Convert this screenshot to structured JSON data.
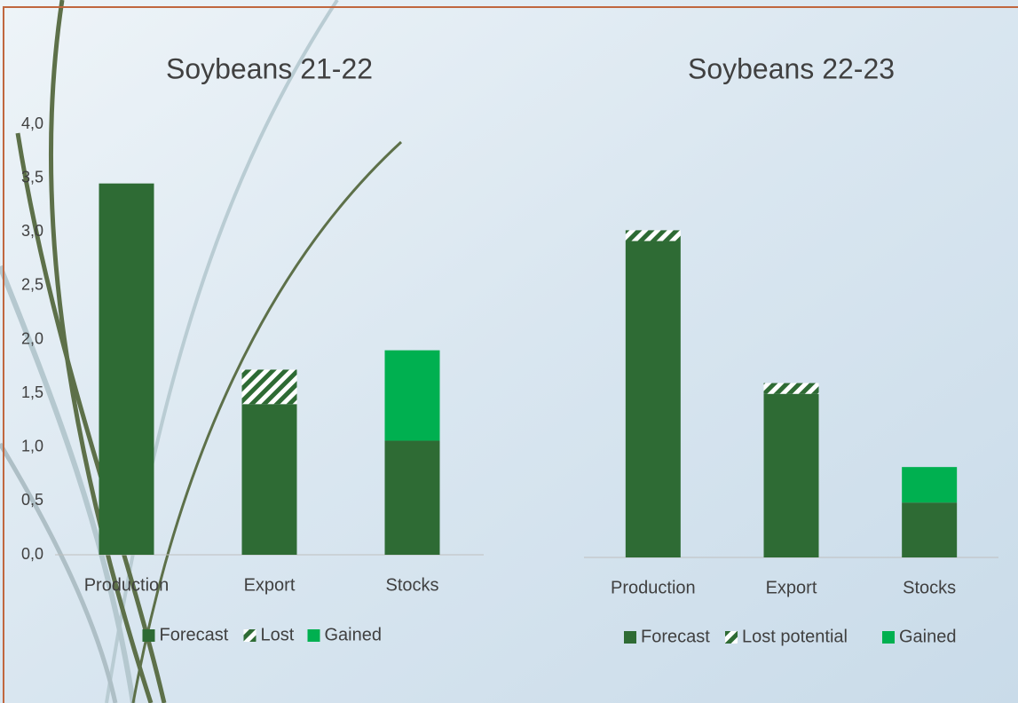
{
  "chart_data": [
    {
      "type": "stacked_bar",
      "title": "Soybeans 21-22",
      "categories": [
        "Production",
        "Export",
        "Stocks"
      ],
      "series": [
        {
          "name": "Forecast",
          "color": "#2e6b34",
          "values": [
            3.45,
            1.4,
            1.06
          ]
        },
        {
          "name": "Lost",
          "color": "#2e6b34",
          "hatch": true,
          "values": [
            null,
            0.32,
            null
          ]
        },
        {
          "name": "Gained",
          "color": "#00b050",
          "values": [
            null,
            null,
            0.84
          ]
        }
      ],
      "ylim": [
        0,
        4
      ],
      "yticks": [
        {
          "value": 0,
          "label": "0,0"
        },
        {
          "value": 0.5,
          "label": "0,5"
        },
        {
          "value": 1,
          "label": "1,0"
        },
        {
          "value": 1.5,
          "label": "1,5"
        },
        {
          "value": 2,
          "label": "2,0"
        },
        {
          "value": 2.5,
          "label": "2,5"
        },
        {
          "value": 3,
          "label": "3,0"
        },
        {
          "value": 3.5,
          "label": "3,5"
        },
        {
          "value": 4,
          "label": "4,0"
        }
      ],
      "legend": "bottom"
    },
    {
      "type": "stacked_bar",
      "title": "Soybeans 22-23",
      "categories": [
        "Production",
        "Export",
        "Stocks"
      ],
      "series": [
        {
          "name": "Forecast",
          "color": "#2e6b34",
          "values": [
            2.94,
            1.52,
            0.51
          ]
        },
        {
          "name": "Lost potential",
          "color": "#2e6b34",
          "hatch": true,
          "values": [
            0.1,
            0.1,
            null
          ]
        },
        {
          "name": "Gained",
          "color": "#00b050",
          "values": [
            null,
            null,
            0.33
          ]
        }
      ],
      "ylim": [
        0,
        4
      ],
      "legend": "bottom"
    }
  ]
}
